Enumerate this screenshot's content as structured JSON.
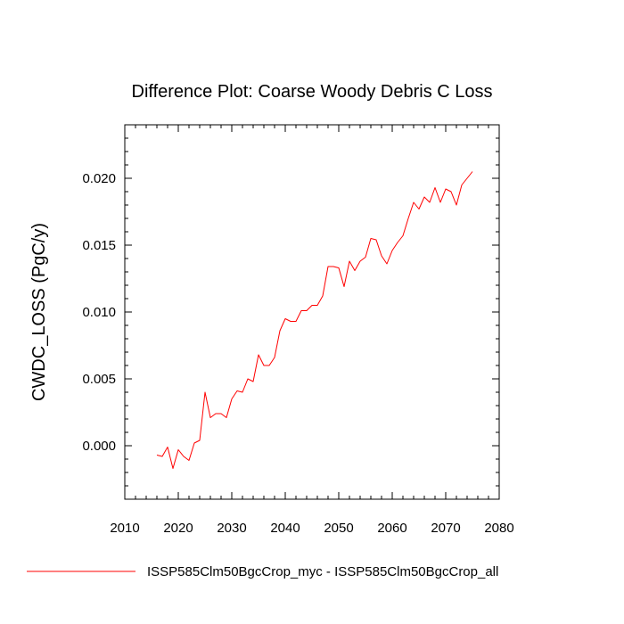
{
  "chart_data": {
    "type": "line",
    "title": "Difference Plot: Coarse Woody Debris C Loss",
    "ylabel": "CWDC_LOSS  (PgC/y)",
    "xlabel": "",
    "xlim": [
      2010,
      2080
    ],
    "ylim": [
      -0.004,
      0.024
    ],
    "x_ticks": [
      2010,
      2020,
      2030,
      2040,
      2050,
      2060,
      2070,
      2080
    ],
    "x_tick_labels": [
      "2010",
      "2020",
      "2030",
      "2040",
      "2050",
      "2060",
      "2070",
      "2080"
    ],
    "x_minor_step": 2,
    "y_ticks": [
      0.0,
      0.005,
      0.01,
      0.015,
      0.02
    ],
    "y_tick_labels": [
      "0.000",
      "0.005",
      "0.010",
      "0.015",
      "0.020"
    ],
    "y_minor_step": 0.001,
    "grid": false,
    "legend_position": "bottom",
    "series": [
      {
        "name": "ISSP585Clm50BgcCrop_myc - ISSP585Clm50BgcCrop_all",
        "color": "#ff0000",
        "x": [
          2016,
          2017,
          2018,
          2019,
          2020,
          2021,
          2022,
          2023,
          2024,
          2025,
          2026,
          2027,
          2028,
          2029,
          2030,
          2031,
          2032,
          2033,
          2034,
          2035,
          2036,
          2037,
          2038,
          2039,
          2040,
          2041,
          2042,
          2043,
          2044,
          2045,
          2046,
          2047,
          2048,
          2049,
          2050,
          2051,
          2052,
          2053,
          2054,
          2055,
          2056,
          2057,
          2058,
          2059,
          2060,
          2061,
          2062,
          2063,
          2064,
          2065,
          2066,
          2067,
          2068,
          2069,
          2070,
          2071,
          2072,
          2073,
          2074,
          2075
        ],
        "values": [
          -0.0007,
          -0.0008,
          -0.0001,
          -0.0017,
          -0.0003,
          -0.0008,
          -0.0011,
          0.0002,
          0.0004,
          0.004,
          0.0021,
          0.0024,
          0.0024,
          0.0021,
          0.0035,
          0.0041,
          0.004,
          0.005,
          0.0048,
          0.0068,
          0.006,
          0.006,
          0.0066,
          0.0086,
          0.0095,
          0.0093,
          0.0093,
          0.0101,
          0.0101,
          0.0105,
          0.0105,
          0.0112,
          0.0134,
          0.0134,
          0.0133,
          0.0119,
          0.0138,
          0.0131,
          0.0138,
          0.0141,
          0.0155,
          0.0154,
          0.0142,
          0.0136,
          0.0146,
          0.0152,
          0.0157,
          0.017,
          0.0182,
          0.0177,
          0.0186,
          0.0182,
          0.0193,
          0.0182,
          0.0192,
          0.019,
          0.018,
          0.0195,
          0.02,
          0.0205
        ]
      }
    ]
  }
}
